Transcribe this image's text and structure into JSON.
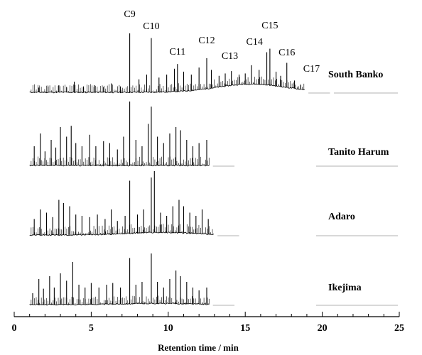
{
  "chart_data": {
    "type": "line",
    "title": "",
    "xlabel": "Retention time / min",
    "ylabel": "",
    "xlim": [
      0,
      25
    ],
    "x_ticks": [
      0,
      5,
      10,
      15,
      20,
      25
    ],
    "x_minor_step": 1,
    "grid": false,
    "line_color": "#000000",
    "peak_labels": [
      {
        "label": "C9",
        "x": 7.5
      },
      {
        "label": "C10",
        "x": 8.9
      },
      {
        "label": "C11",
        "x": 10.6
      },
      {
        "label": "C12",
        "x": 12.5
      },
      {
        "label": "C13",
        "x": 14.0
      },
      {
        "label": "C14",
        "x": 15.6
      },
      {
        "label": "C15",
        "x": 16.6
      },
      {
        "label": "C16",
        "x": 17.7
      },
      {
        "label": "C17",
        "x": 19.3
      }
    ],
    "series": [
      {
        "name": "South Banko",
        "x_end": 18.9,
        "hump": 0.14,
        "peaks": [
          [
            1.6,
            0.08
          ],
          [
            2.2,
            0.1
          ],
          [
            2.9,
            0.12
          ],
          [
            3.4,
            0.09
          ],
          [
            3.9,
            0.18
          ],
          [
            4.5,
            0.1
          ],
          [
            5.2,
            0.12
          ],
          [
            5.8,
            0.09
          ],
          [
            6.3,
            0.15
          ],
          [
            6.9,
            0.1
          ],
          [
            7.5,
            1.0
          ],
          [
            8.1,
            0.22
          ],
          [
            8.6,
            0.3
          ],
          [
            8.9,
            0.92
          ],
          [
            9.4,
            0.25
          ],
          [
            9.9,
            0.3
          ],
          [
            10.4,
            0.4
          ],
          [
            10.6,
            0.48
          ],
          [
            11.0,
            0.35
          ],
          [
            11.5,
            0.3
          ],
          [
            12.0,
            0.42
          ],
          [
            12.5,
            0.58
          ],
          [
            12.8,
            0.38
          ],
          [
            13.3,
            0.28
          ],
          [
            13.7,
            0.32
          ],
          [
            14.1,
            0.36
          ],
          [
            14.6,
            0.3
          ],
          [
            15.0,
            0.32
          ],
          [
            15.4,
            0.46
          ],
          [
            15.9,
            0.38
          ],
          [
            16.4,
            0.68
          ],
          [
            16.6,
            0.74
          ],
          [
            17.0,
            0.35
          ],
          [
            17.3,
            0.28
          ],
          [
            17.7,
            0.5
          ],
          [
            18.2,
            0.2
          ],
          [
            18.6,
            0.12
          ]
        ]
      },
      {
        "name": "Tanito Harum",
        "x_end": 12.7,
        "hump": 0.0,
        "peaks": [
          [
            1.3,
            0.3
          ],
          [
            1.7,
            0.5
          ],
          [
            2.0,
            0.22
          ],
          [
            2.4,
            0.4
          ],
          [
            2.7,
            0.28
          ],
          [
            3.0,
            0.6
          ],
          [
            3.4,
            0.45
          ],
          [
            3.7,
            0.62
          ],
          [
            4.0,
            0.35
          ],
          [
            4.4,
            0.3
          ],
          [
            4.9,
            0.48
          ],
          [
            5.3,
            0.3
          ],
          [
            5.8,
            0.38
          ],
          [
            6.2,
            0.35
          ],
          [
            6.7,
            0.25
          ],
          [
            7.1,
            0.45
          ],
          [
            7.5,
            1.0
          ],
          [
            7.9,
            0.4
          ],
          [
            8.3,
            0.3
          ],
          [
            8.7,
            0.65
          ],
          [
            8.9,
            0.92
          ],
          [
            9.3,
            0.45
          ],
          [
            9.7,
            0.35
          ],
          [
            10.1,
            0.5
          ],
          [
            10.5,
            0.6
          ],
          [
            10.8,
            0.55
          ],
          [
            11.2,
            0.4
          ],
          [
            11.6,
            0.3
          ],
          [
            12.0,
            0.35
          ],
          [
            12.5,
            0.4
          ]
        ]
      },
      {
        "name": "Adaro",
        "x_end": 13.0,
        "hump": 0.04,
        "peaks": [
          [
            1.3,
            0.25
          ],
          [
            1.7,
            0.4
          ],
          [
            2.1,
            0.35
          ],
          [
            2.5,
            0.28
          ],
          [
            2.9,
            0.55
          ],
          [
            3.2,
            0.5
          ],
          [
            3.6,
            0.45
          ],
          [
            4.0,
            0.32
          ],
          [
            4.4,
            0.3
          ],
          [
            4.9,
            0.28
          ],
          [
            5.4,
            0.32
          ],
          [
            5.9,
            0.25
          ],
          [
            6.3,
            0.4
          ],
          [
            6.7,
            0.22
          ],
          [
            7.2,
            0.3
          ],
          [
            7.5,
            0.85
          ],
          [
            8.0,
            0.32
          ],
          [
            8.4,
            0.4
          ],
          [
            8.9,
            0.9
          ],
          [
            9.1,
            1.0
          ],
          [
            9.5,
            0.35
          ],
          [
            9.9,
            0.3
          ],
          [
            10.3,
            0.45
          ],
          [
            10.7,
            0.55
          ],
          [
            11.0,
            0.45
          ],
          [
            11.4,
            0.35
          ],
          [
            11.8,
            0.3
          ],
          [
            12.2,
            0.4
          ],
          [
            12.6,
            0.25
          ]
        ]
      },
      {
        "name": "Ikejima",
        "x_end": 12.7,
        "hump": 0.02,
        "peaks": [
          [
            1.2,
            0.2
          ],
          [
            1.6,
            0.45
          ],
          [
            1.9,
            0.28
          ],
          [
            2.3,
            0.5
          ],
          [
            2.6,
            0.3
          ],
          [
            3.0,
            0.55
          ],
          [
            3.4,
            0.42
          ],
          [
            3.8,
            0.75
          ],
          [
            4.2,
            0.35
          ],
          [
            4.6,
            0.3
          ],
          [
            5.0,
            0.38
          ],
          [
            5.5,
            0.3
          ],
          [
            6.0,
            0.35
          ],
          [
            6.4,
            0.38
          ],
          [
            6.9,
            0.3
          ],
          [
            7.5,
            0.82
          ],
          [
            7.9,
            0.35
          ],
          [
            8.3,
            0.4
          ],
          [
            8.9,
            0.9
          ],
          [
            9.3,
            0.4
          ],
          [
            9.7,
            0.3
          ],
          [
            10.1,
            0.45
          ],
          [
            10.5,
            0.6
          ],
          [
            10.8,
            0.5
          ],
          [
            11.2,
            0.4
          ],
          [
            11.6,
            0.3
          ],
          [
            12.0,
            0.25
          ],
          [
            12.5,
            0.3
          ]
        ]
      }
    ]
  }
}
